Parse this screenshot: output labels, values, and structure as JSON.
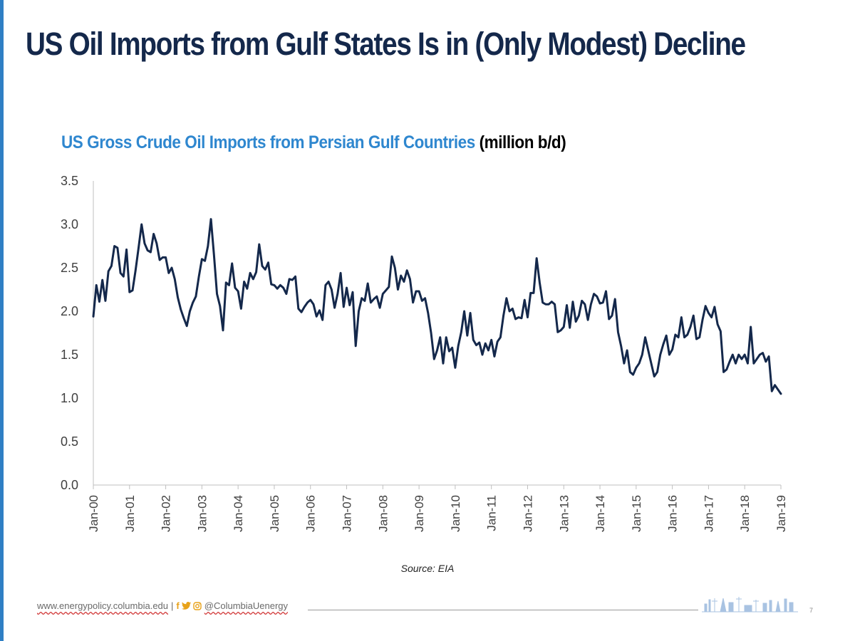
{
  "slide": {
    "title": "US Oil Imports from Gulf States Is in (Only Modest) Decline",
    "page_number": "7"
  },
  "footer": {
    "url": "www.energypolicy.columbia.edu",
    "separator": "|",
    "handle": "@ColumbiaUenergy",
    "social_icons": [
      "facebook-icon",
      "twitter-icon",
      "instagram-icon"
    ]
  },
  "colors": {
    "title": "#14284b",
    "chart_title": "#2f87cf",
    "line": "#14284b",
    "accent_rule": "#2f7fc4"
  },
  "chart_data": {
    "type": "line",
    "title": "US Gross Crude Oil Imports from Persian Gulf Countries",
    "title_unit": "(million b/d)",
    "xlabel": "",
    "ylabel": "",
    "ylim": [
      0,
      3.5
    ],
    "y_ticks": [
      "0.0",
      "0.5",
      "1.0",
      "1.5",
      "2.0",
      "2.5",
      "3.0",
      "3.5"
    ],
    "x_ticks": [
      "Jan-00",
      "Jan-01",
      "Jan-02",
      "Jan-03",
      "Jan-04",
      "Jan-05",
      "Jan-06",
      "Jan-07",
      "Jan-08",
      "Jan-09",
      "Jan-10",
      "Jan-11",
      "Jan-12",
      "Jan-13",
      "Jan-14",
      "Jan-15",
      "Jan-16",
      "Jan-17",
      "Jan-18",
      "Jan-19"
    ],
    "grid": false,
    "source": "Source: EIA",
    "series": [
      {
        "name": "US Gross Crude Oil Imports from Persian Gulf Countries",
        "start": "Jan-2000",
        "frequency": "monthly",
        "values": [
          1.94,
          2.3,
          2.11,
          2.36,
          2.12,
          2.46,
          2.52,
          2.75,
          2.73,
          2.44,
          2.4,
          2.71,
          2.22,
          2.24,
          2.47,
          2.73,
          3.0,
          2.78,
          2.7,
          2.68,
          2.89,
          2.78,
          2.59,
          2.62,
          2.62,
          2.44,
          2.5,
          2.37,
          2.16,
          2.02,
          1.92,
          1.83,
          2.0,
          2.1,
          2.17,
          2.4,
          2.6,
          2.58,
          2.75,
          3.06,
          2.65,
          2.2,
          2.06,
          1.78,
          2.33,
          2.3,
          2.55,
          2.27,
          2.23,
          2.03,
          2.34,
          2.26,
          2.44,
          2.37,
          2.45,
          2.77,
          2.52,
          2.48,
          2.56,
          2.31,
          2.3,
          2.26,
          2.3,
          2.27,
          2.2,
          2.37,
          2.36,
          2.4,
          2.03,
          1.99,
          2.05,
          2.1,
          2.13,
          2.08,
          1.94,
          2.01,
          1.9,
          2.3,
          2.34,
          2.25,
          2.04,
          2.2,
          2.44,
          2.05,
          2.27,
          2.07,
          2.22,
          1.6,
          2.0,
          2.15,
          2.12,
          2.32,
          2.1,
          2.14,
          2.17,
          2.04,
          2.2,
          2.24,
          2.28,
          2.63,
          2.5,
          2.25,
          2.41,
          2.34,
          2.47,
          2.37,
          2.1,
          2.23,
          2.23,
          2.12,
          2.15,
          1.98,
          1.75,
          1.45,
          1.55,
          1.7,
          1.4,
          1.7,
          1.54,
          1.58,
          1.35,
          1.6,
          1.76,
          2.0,
          1.72,
          1.98,
          1.67,
          1.61,
          1.64,
          1.5,
          1.63,
          1.55,
          1.67,
          1.48,
          1.65,
          1.7,
          1.95,
          2.15,
          2.0,
          2.03,
          1.91,
          1.93,
          1.92,
          2.13,
          1.93,
          2.21,
          2.21,
          2.61,
          2.33,
          2.1,
          2.08,
          2.08,
          2.11,
          2.08,
          1.76,
          1.78,
          1.82,
          2.07,
          1.81,
          2.11,
          1.88,
          1.95,
          2.12,
          2.08,
          1.9,
          2.08,
          2.2,
          2.17,
          2.09,
          2.1,
          2.23,
          1.91,
          1.95,
          2.14,
          1.76,
          1.6,
          1.4,
          1.55,
          1.3,
          1.27,
          1.35,
          1.4,
          1.5,
          1.7,
          1.55,
          1.4,
          1.25,
          1.3,
          1.5,
          1.62,
          1.72,
          1.5,
          1.56,
          1.73,
          1.7,
          1.93,
          1.7,
          1.73,
          1.82,
          1.95,
          1.68,
          1.7,
          1.9,
          2.06,
          1.98,
          1.93,
          2.05,
          1.85,
          1.77,
          1.3,
          1.33,
          1.42,
          1.5,
          1.4,
          1.5,
          1.45,
          1.5,
          1.4,
          1.82,
          1.4,
          1.45,
          1.5,
          1.52,
          1.42,
          1.48,
          1.08,
          1.15,
          1.1,
          1.05
        ]
      }
    ]
  }
}
